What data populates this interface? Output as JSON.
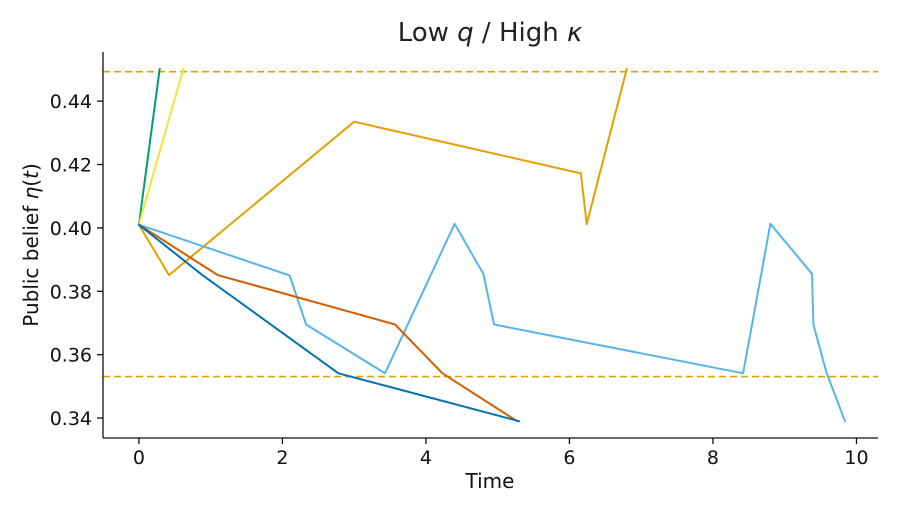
{
  "chart_data": {
    "type": "line",
    "title": {
      "parts": [
        {
          "text": "Low ",
          "italic": false
        },
        {
          "text": "q",
          "italic": true
        },
        {
          "text": " / High ",
          "italic": false
        },
        {
          "text": "κ",
          "italic": true
        }
      ]
    },
    "xlabel": "Time",
    "ylabel": {
      "parts": [
        {
          "text": "Public belief ",
          "italic": false
        },
        {
          "text": "η",
          "italic": true
        },
        {
          "text": "(",
          "italic": false
        },
        {
          "text": "t",
          "italic": true
        },
        {
          "text": ")",
          "italic": false
        }
      ]
    },
    "xlim": [
      -0.5,
      10.3
    ],
    "ylim": [
      0.3337,
      0.4555
    ],
    "xticks": [
      0,
      2,
      4,
      6,
      8,
      10
    ],
    "yticks": [
      0.34,
      0.36,
      0.38,
      0.4,
      0.42,
      0.44
    ],
    "ytick_labels": [
      "0.34",
      "0.36",
      "0.38",
      "0.40",
      "0.42",
      "0.44"
    ],
    "grid": false,
    "thresholds": [
      {
        "y": 0.4493,
        "color": "#E69F00",
        "style": "dashed"
      },
      {
        "y": 0.3531,
        "color": "#E69F00",
        "style": "dashed"
      }
    ],
    "series": [
      {
        "color": "#009E73",
        "x": [
          0,
          0.29
        ],
        "y": [
          0.401,
          0.4502
        ]
      },
      {
        "color": "#F0E442",
        "x": [
          0,
          0.62
        ],
        "y": [
          0.401,
          0.4502
        ]
      },
      {
        "color": "#E69F00",
        "x": [
          0,
          0.42,
          3.0,
          6.16,
          6.24,
          6.8
        ],
        "y": [
          0.401,
          0.3851,
          0.4335,
          0.4172,
          0.4012,
          0.4502
        ]
      },
      {
        "color": "#56B4E9",
        "x": [
          0,
          2.1,
          2.33,
          3.43,
          4.4,
          4.8,
          4.95,
          8.42,
          8.8,
          9.38,
          9.4,
          9.58,
          9.84
        ],
        "y": [
          0.401,
          0.385,
          0.3695,
          0.3541,
          0.4013,
          0.3855,
          0.3695,
          0.3541,
          0.4013,
          0.3855,
          0.3695,
          0.3545,
          0.339
        ]
      },
      {
        "color": "#D55E00",
        "x": [
          0,
          1.1,
          3.57,
          4.23,
          5.27
        ],
        "y": [
          0.401,
          0.3851,
          0.3695,
          0.3541,
          0.339
        ]
      },
      {
        "color": "#0072B2",
        "x": [
          0,
          0.88,
          2.78,
          5.3
        ],
        "y": [
          0.401,
          0.3852,
          0.3541,
          0.339
        ]
      }
    ]
  }
}
